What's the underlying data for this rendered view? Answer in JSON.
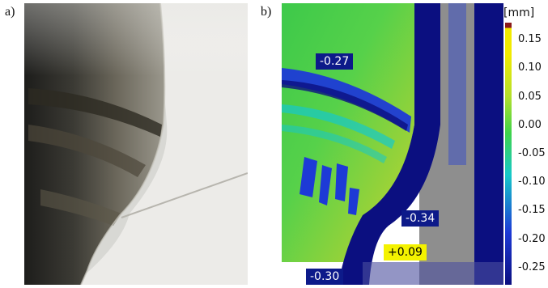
{
  "panels": {
    "a_label": "a)",
    "b_label": "b)"
  },
  "annotations": [
    {
      "text": "-0.27",
      "style": "dark"
    },
    {
      "text": "-0.34",
      "style": "dark"
    },
    {
      "text": "+0.09",
      "style": "bright"
    },
    {
      "text": "-0.30",
      "style": "dark"
    }
  ],
  "colorbar": {
    "unit": "[mm]",
    "ticks": [
      "0.15",
      "0.10",
      "0.05",
      "0.00",
      "-0.05",
      "-0.10",
      "-0.15",
      "-0.20",
      "-0.25"
    ],
    "range": [
      -0.28,
      0.18
    ],
    "colors": {
      "top_cap": "#8b1a1a",
      "yellow": "#f2ea00",
      "green": "#3fd34a",
      "teal": "#17c9c9",
      "blue": "#1d3ad6",
      "navy": "#0b0f80"
    }
  }
}
